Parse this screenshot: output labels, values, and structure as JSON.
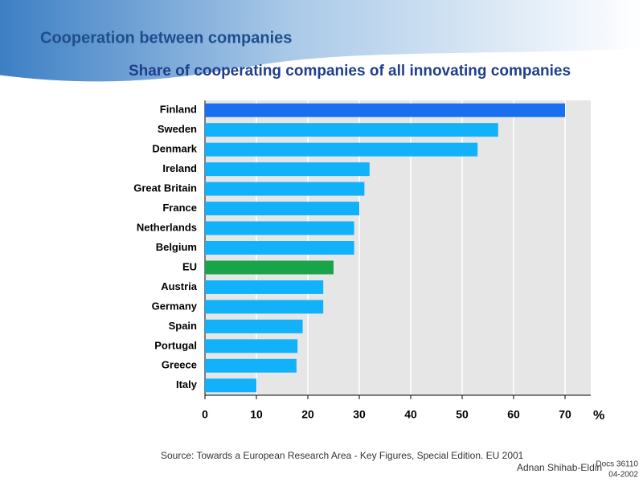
{
  "slide": {
    "title": "Cooperation between companies",
    "source": "Source: Towards a European Research Area - Key Figures, Special Edition. EU 2001",
    "author": "Adnan Shihab-Eldin",
    "doc": "Docs 36110",
    "date": "04-2002"
  },
  "chart_data": {
    "type": "bar",
    "orientation": "horizontal",
    "title": "Share of cooperating companies of all innovating companies",
    "x_label": "%",
    "categories": [
      "Finland",
      "Sweden",
      "Denmark",
      "Ireland",
      "Great Britain",
      "France",
      "Netherlands",
      "Belgium",
      "EU",
      "Austria",
      "Germany",
      "Spain",
      "Portugal",
      "Greece",
      "Italy"
    ],
    "values": [
      70,
      57,
      53,
      32,
      31,
      30,
      29,
      29,
      25,
      23,
      23,
      19,
      18,
      17.8,
      10
    ],
    "colors": [
      "#1a6ef0",
      "#12b2fb",
      "#12b2fb",
      "#12b2fb",
      "#12b2fb",
      "#12b2fb",
      "#12b2fb",
      "#12b2fb",
      "#1aa34a",
      "#12b2fb",
      "#12b2fb",
      "#12b2fb",
      "#12b2fb",
      "#12b2fb",
      "#12b2fb"
    ],
    "xlim": [
      0,
      75
    ],
    "xticks": [
      0,
      10,
      20,
      30,
      40,
      50,
      60,
      70
    ],
    "grid": true
  }
}
